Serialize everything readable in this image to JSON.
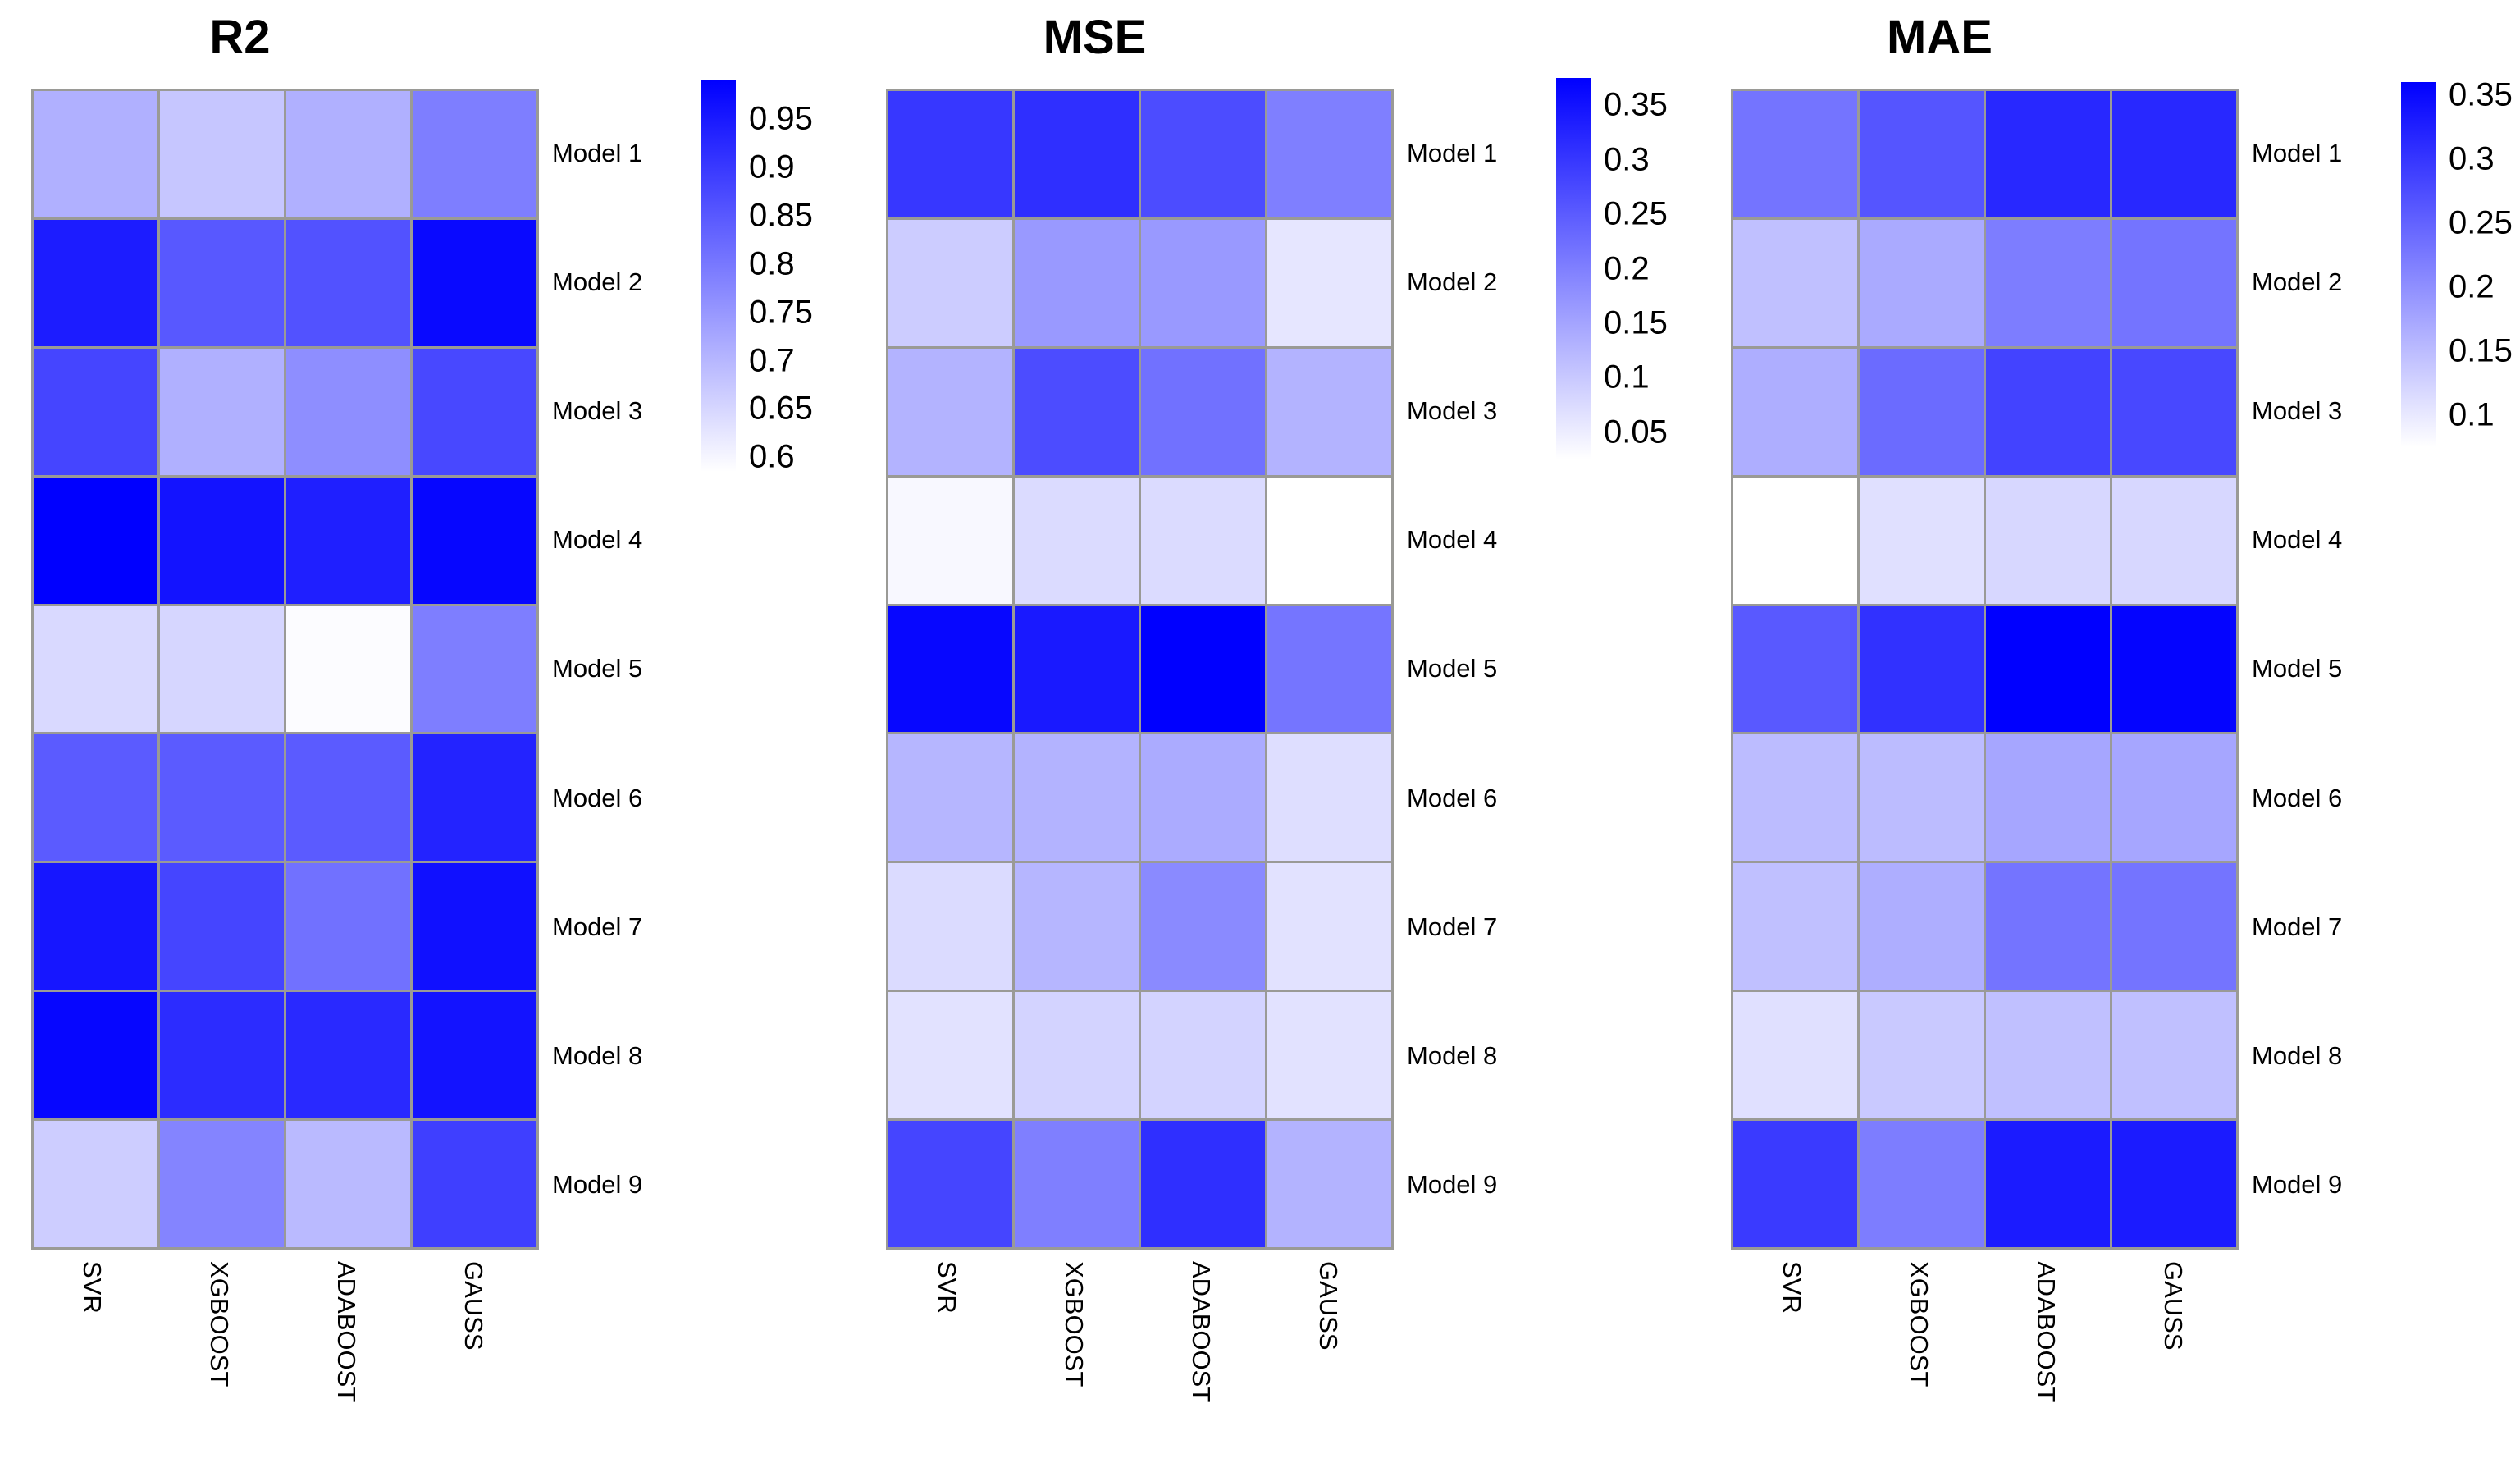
{
  "figure": {
    "background": "#ffffff",
    "gridline_color": "#9a9a96"
  },
  "chart_data": [
    {
      "type": "heatmap",
      "title": "R2",
      "columns": [
        "SVR",
        "XGBOOST",
        "ADABOOST",
        "GAUSS"
      ],
      "rows": [
        "Model 1",
        "Model 2",
        "Model 3",
        "Model 4",
        "Model 5",
        "Model 6",
        "Model 7",
        "Model 8",
        "Model 9"
      ],
      "values": [
        [
          0.71,
          0.675,
          0.71,
          0.79
        ],
        [
          0.945,
          0.85,
          0.86,
          0.975
        ],
        [
          0.88,
          0.71,
          0.765,
          0.875
        ],
        [
          0.99,
          0.96,
          0.94,
          0.98
        ],
        [
          0.645,
          0.65,
          0.59,
          0.79
        ],
        [
          0.845,
          0.845,
          0.845,
          0.935
        ],
        [
          0.955,
          0.88,
          0.81,
          0.965
        ],
        [
          0.98,
          0.92,
          0.925,
          0.96
        ],
        [
          0.665,
          0.78,
          0.695,
          0.89
        ]
      ],
      "colorbar": {
        "min": 0.585,
        "max": 0.99,
        "ticks": [
          0.95,
          0.9,
          0.85,
          0.8,
          0.75,
          0.7,
          0.65,
          0.6
        ],
        "tick_labels": [
          "0.95",
          "0.9",
          "0.85",
          "0.8",
          "0.75",
          "0.7",
          "0.65",
          "0.6"
        ]
      },
      "colormap": {
        "low": "#ffffff",
        "high": "#0000ff"
      },
      "legend_position": "right"
    },
    {
      "type": "heatmap",
      "title": "MSE",
      "columns": [
        "SVR",
        "XGBOOST",
        "ADABOOST",
        "GAUSS"
      ],
      "rows": [
        "Model 1",
        "Model 2",
        "Model 3",
        "Model 4",
        "Model 5",
        "Model 6",
        "Model 7",
        "Model 8",
        "Model 9"
      ],
      "values": [
        [
          0.3,
          0.31,
          0.27,
          0.2
        ],
        [
          0.095,
          0.165,
          0.165,
          0.06
        ],
        [
          0.13,
          0.27,
          0.22,
          0.13
        ],
        [
          0.035,
          0.075,
          0.075,
          0.025
        ],
        [
          0.365,
          0.34,
          0.375,
          0.215
        ],
        [
          0.125,
          0.13,
          0.14,
          0.07
        ],
        [
          0.075,
          0.125,
          0.185,
          0.065
        ],
        [
          0.065,
          0.085,
          0.085,
          0.065
        ],
        [
          0.28,
          0.2,
          0.31,
          0.13
        ]
      ],
      "colorbar": {
        "min": 0.025,
        "max": 0.375,
        "ticks": [
          0.35,
          0.3,
          0.25,
          0.2,
          0.15,
          0.1,
          0.05
        ],
        "tick_labels": [
          "0.35",
          "0.3",
          "0.25",
          "0.2",
          "0.15",
          "0.1",
          "0.05"
        ]
      },
      "colormap": {
        "low": "#ffffff",
        "high": "#0000ff"
      },
      "legend_position": "right"
    },
    {
      "type": "heatmap",
      "title": "MAE",
      "columns": [
        "SVR",
        "XGBOOST",
        "ADABOOST",
        "GAUSS"
      ],
      "rows": [
        "Model 1",
        "Model 2",
        "Model 3",
        "Model 4",
        "Model 5",
        "Model 6",
        "Model 7",
        "Model 8",
        "Model 9"
      ],
      "values": [
        [
          0.23,
          0.265,
          0.315,
          0.315
        ],
        [
          0.145,
          0.17,
          0.22,
          0.23
        ],
        [
          0.165,
          0.24,
          0.285,
          0.28
        ],
        [
          0.075,
          0.11,
          0.12,
          0.12
        ],
        [
          0.26,
          0.305,
          0.36,
          0.355
        ],
        [
          0.15,
          0.15,
          0.175,
          0.175
        ],
        [
          0.145,
          0.165,
          0.23,
          0.23
        ],
        [
          0.11,
          0.135,
          0.145,
          0.145
        ],
        [
          0.295,
          0.22,
          0.33,
          0.33
        ]
      ],
      "colorbar": {
        "min": 0.075,
        "max": 0.36,
        "ticks": [
          0.35,
          0.3,
          0.25,
          0.2,
          0.15,
          0.1
        ],
        "tick_labels": [
          "0.35",
          "0.3",
          "0.25",
          "0.2",
          "0.15",
          "0.1"
        ]
      },
      "colormap": {
        "low": "#ffffff",
        "high": "#0000ff"
      },
      "legend_position": "right"
    }
  ]
}
